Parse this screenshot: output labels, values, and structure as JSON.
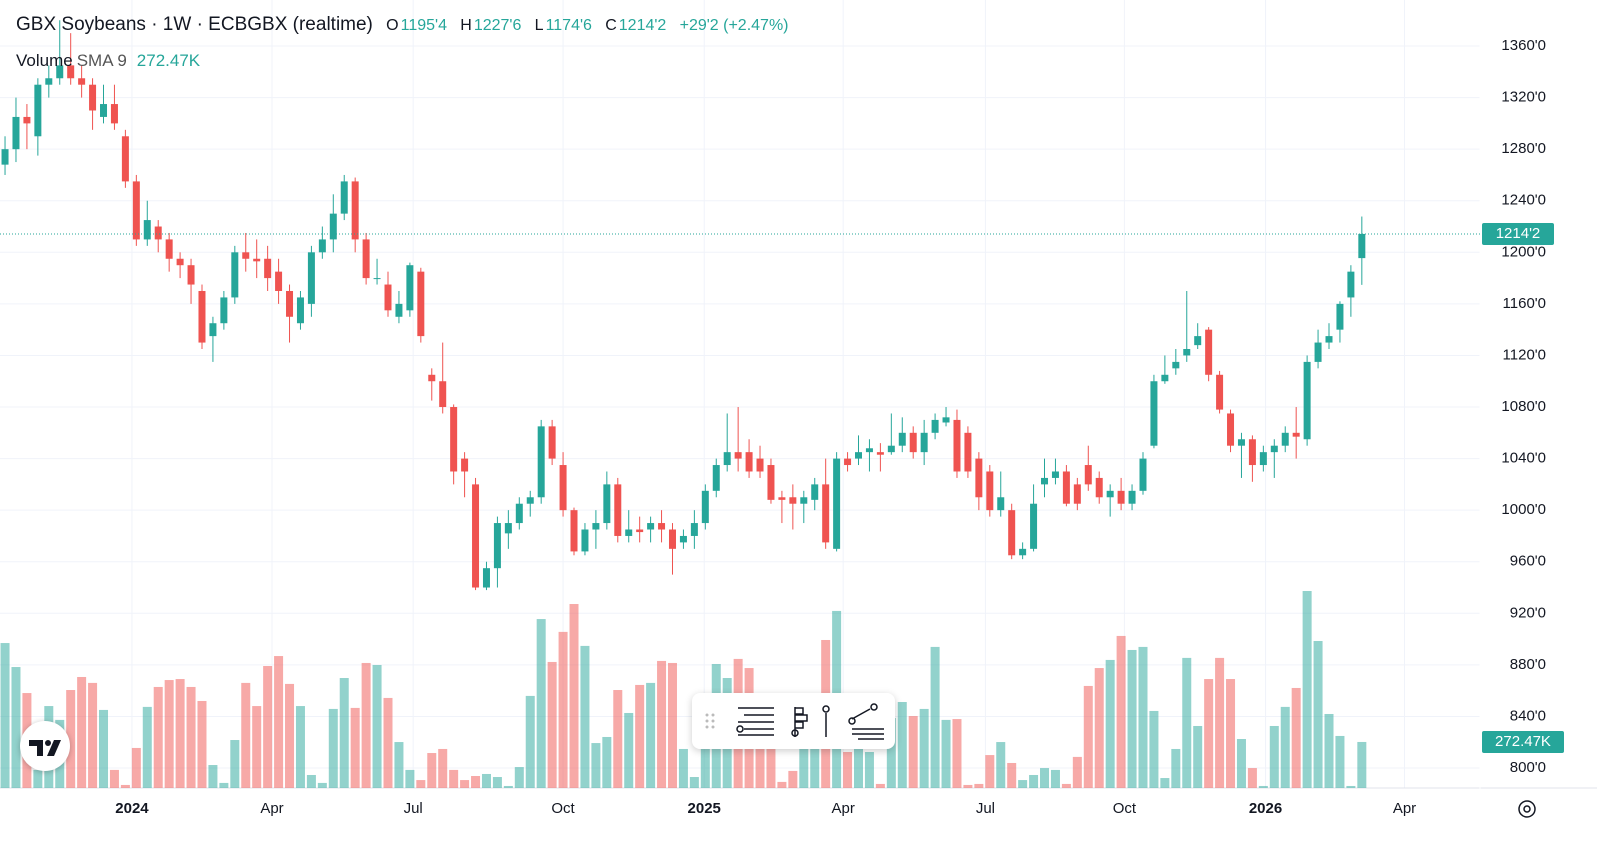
{
  "chart_data": {
    "type": "candlestick",
    "header": {
      "title": "GBX Soybeans · 1W · ECBGBX (realtime)",
      "o_label": "O",
      "open": "1195'4",
      "h_label": "H",
      "high": "1227'6",
      "l_label": "L",
      "low": "1174'6",
      "c_label": "C",
      "close": "1214'2",
      "change": "+29'2 (+2.47%)",
      "volume_title": "Volume",
      "sma": "SMA 9",
      "volume": "272.47K"
    },
    "colors": {
      "up": "#26a69a",
      "down": "#ef5350"
    },
    "ylim": [
      784.5,
      1395.7
    ],
    "yticks": [
      {
        "value": 800,
        "label": "800'0"
      },
      {
        "value": 840,
        "label": "840'0"
      },
      {
        "value": 880,
        "label": "880'0"
      },
      {
        "value": 920,
        "label": "920'0"
      },
      {
        "value": 960,
        "label": "960'0"
      },
      {
        "value": 1000,
        "label": "1000'0"
      },
      {
        "value": 1040,
        "label": "1040'0"
      },
      {
        "value": 1080,
        "label": "1080'0"
      },
      {
        "value": 1120,
        "label": "1120'0"
      },
      {
        "value": 1160,
        "label": "1160'0"
      },
      {
        "value": 1200,
        "label": "1200'0"
      },
      {
        "value": 1240,
        "label": "1240'0"
      },
      {
        "value": 1280,
        "label": "1280'0"
      },
      {
        "value": 1320,
        "label": "1320'0"
      },
      {
        "value": 1360,
        "label": "1360'0"
      }
    ],
    "xlim": [
      -0.46,
      134.8
    ],
    "xticks": [
      {
        "value": 11.6,
        "label": "2024"
      },
      {
        "value": 24.4,
        "label": "Apr"
      },
      {
        "value": 37.3,
        "label": "Jul"
      },
      {
        "value": 51.0,
        "label": "Oct"
      },
      {
        "value": 63.9,
        "label": "2025"
      },
      {
        "value": 76.6,
        "label": "Apr"
      },
      {
        "value": 89.6,
        "label": "Jul"
      },
      {
        "value": 102.3,
        "label": "Oct"
      },
      {
        "value": 115.2,
        "label": "2026"
      },
      {
        "value": 127.9,
        "label": "Apr"
      }
    ],
    "grid": true,
    "open": [
      1268,
      1280,
      1305,
      1290,
      1330,
      1335,
      1345,
      1335,
      1330,
      1305,
      1315,
      1290,
      1255,
      1210,
      1220,
      1210,
      1195,
      1190,
      1170,
      1135,
      1145,
      1165,
      1200,
      1195,
      1195,
      1185,
      1170,
      1145,
      1160,
      1200,
      1210,
      1230,
      1255,
      1210,
      1180,
      1175,
      1150,
      1155,
      1185,
      1105,
      1100,
      1080,
      1040,
      1020,
      940,
      955,
      982,
      990,
      1005,
      1010,
      1065,
      1035,
      1000,
      968,
      985,
      990,
      1020,
      980,
      985,
      985,
      990,
      985,
      975,
      980,
      990,
      1015,
      1035,
      1045,
      1045,
      1040,
      1035,
      1010,
      1010,
      1005,
      1008,
      1020,
      970,
      1040,
      1040,
      1045,
      1045,
      1045,
      1050,
      1060,
      1045,
      1060,
      1068,
      1070,
      1060,
      1040,
      1030,
      1000,
      1000,
      965,
      970,
      1020,
      1025,
      1030,
      1020,
      1035,
      1025,
      1010,
      1015,
      1005,
      1015,
      1050,
      1100,
      1110,
      1120,
      1128,
      1140,
      1105,
      1075,
      1050,
      1055,
      1035,
      1045,
      1050,
      1060,
      1055,
      1115,
      1130,
      1140,
      1165,
      1195.5
    ],
    "high": [
      1290,
      1320,
      1315,
      1335,
      1345,
      1380,
      1370,
      1345,
      1335,
      1330,
      1330,
      1295,
      1260,
      1240,
      1225,
      1215,
      1200,
      1195,
      1175,
      1150,
      1170,
      1205,
      1215,
      1210,
      1205,
      1195,
      1175,
      1170,
      1205,
      1220,
      1245,
      1260,
      1258,
      1215,
      1195,
      1185,
      1170,
      1192,
      1188,
      1110,
      1130,
      1082,
      1045,
      1025,
      960,
      995,
      1000,
      1010,
      1015,
      1070,
      1070,
      1045,
      1002,
      990,
      1000,
      1030,
      1025,
      1000,
      995,
      995,
      1000,
      990,
      985,
      1000,
      1020,
      1040,
      1075,
      1080,
      1055,
      1050,
      1040,
      1015,
      1020,
      1015,
      1025,
      1040,
      1045,
      1045,
      1058,
      1055,
      1052,
      1075,
      1072,
      1065,
      1070,
      1075,
      1080,
      1078,
      1065,
      1045,
      1035,
      1030,
      1005,
      975,
      1020,
      1040,
      1040,
      1035,
      1025,
      1050,
      1030,
      1020,
      1025,
      1020,
      1045,
      1105,
      1120,
      1125,
      1170,
      1145,
      1142,
      1108,
      1078,
      1060,
      1058,
      1050,
      1055,
      1065,
      1080,
      1120,
      1140,
      1145,
      1162,
      1190,
      1227.75
    ],
    "low": [
      1260,
      1270,
      1280,
      1275,
      1320,
      1330,
      1330,
      1320,
      1295,
      1300,
      1295,
      1250,
      1205,
      1205,
      1200,
      1185,
      1180,
      1160,
      1125,
      1115,
      1140,
      1160,
      1185,
      1180,
      1170,
      1160,
      1130,
      1140,
      1150,
      1195,
      1200,
      1225,
      1200,
      1175,
      1175,
      1150,
      1145,
      1150,
      1130,
      1085,
      1075,
      1020,
      1010,
      938,
      938,
      940,
      970,
      985,
      995,
      1005,
      1035,
      995,
      965,
      965,
      970,
      985,
      975,
      975,
      975,
      975,
      975,
      950,
      970,
      970,
      985,
      1010,
      1030,
      1030,
      1025,
      1025,
      1005,
      990,
      985,
      990,
      1000,
      970,
      968,
      1030,
      1035,
      1030,
      1030,
      1043,
      1045,
      1040,
      1035,
      1055,
      1065,
      1025,
      1025,
      1000,
      995,
      995,
      962,
      962,
      968,
      1010,
      1020,
      1003,
      1000,
      1015,
      1005,
      995,
      1000,
      1000,
      1012,
      1048,
      1098,
      1105,
      1115,
      1125,
      1100,
      1075,
      1045,
      1025,
      1022,
      1030,
      1025,
      1045,
      1040,
      1050,
      1110,
      1125,
      1130,
      1150,
      1174.75
    ],
    "close": [
      1280,
      1305,
      1300,
      1330,
      1335,
      1345,
      1335,
      1330,
      1310,
      1315,
      1300,
      1255,
      1210,
      1225,
      1210,
      1195,
      1190,
      1175,
      1130,
      1145,
      1165,
      1200,
      1195,
      1193,
      1180,
      1170,
      1150,
      1165,
      1200,
      1210,
      1230,
      1255,
      1210,
      1180,
      1180,
      1155,
      1160,
      1190,
      1135,
      1100,
      1080,
      1030,
      1030,
      940,
      955,
      990,
      990,
      1005,
      1010,
      1065,
      1040,
      1000,
      968,
      985,
      990,
      1020,
      980,
      985,
      983,
      990,
      985,
      970,
      980,
      990,
      1015,
      1035,
      1045,
      1040,
      1030,
      1030,
      1008,
      1008,
      1005,
      1010,
      1020,
      975,
      1040,
      1035,
      1045,
      1048,
      1043,
      1050,
      1060,
      1045,
      1060,
      1070,
      1072,
      1030,
      1030,
      1010,
      1000,
      1010,
      965,
      970,
      1005,
      1025,
      1030,
      1005,
      1005,
      1020,
      1010,
      1015,
      1005,
      1015,
      1040,
      1100,
      1105,
      1115,
      1125,
      1135,
      1105,
      1078,
      1050,
      1055,
      1035,
      1045,
      1050,
      1060,
      1057,
      1115,
      1130,
      1135,
      1160,
      1185,
      1214.25
    ],
    "volume": [
      858,
      716,
      562,
      107,
      485,
      403,
      580,
      657,
      622,
      462,
      107,
      18,
      237,
      480,
      598,
      639,
      645,
      598,
      515,
      136,
      30,
      284,
      622,
      485,
      722,
      781,
      616,
      485,
      77,
      30,
      468,
      651,
      474,
      740,
      728,
      533,
      272,
      107,
      47,
      207,
      231,
      107,
      47,
      71,
      83,
      65,
      12,
      124,
      545,
      1000,
      746,
      924,
      1089,
      841,
      266,
      302,
      580,
      444,
      610,
      622,
      752,
      740,
      231,
      65,
      480,
      734,
      651,
      764,
      710,
      332,
      249,
      36,
      101,
      337,
      432,
      876,
      1048,
      213,
      255,
      213,
      24,
      414,
      509,
      426,
      468,
      835,
      403,
      408,
      18,
      24,
      195,
      272,
      148,
      47,
      77,
      118,
      107,
      24,
      184,
      604,
      710,
      758,
      900,
      817,
      835,
      456,
      59,
      231,
      770,
      367,
      645,
      770,
      645,
      290,
      118,
      12,
      367,
      480,
      592,
      1166,
      870,
      438,
      308,
      12,
      272.47
    ]
  }
}
